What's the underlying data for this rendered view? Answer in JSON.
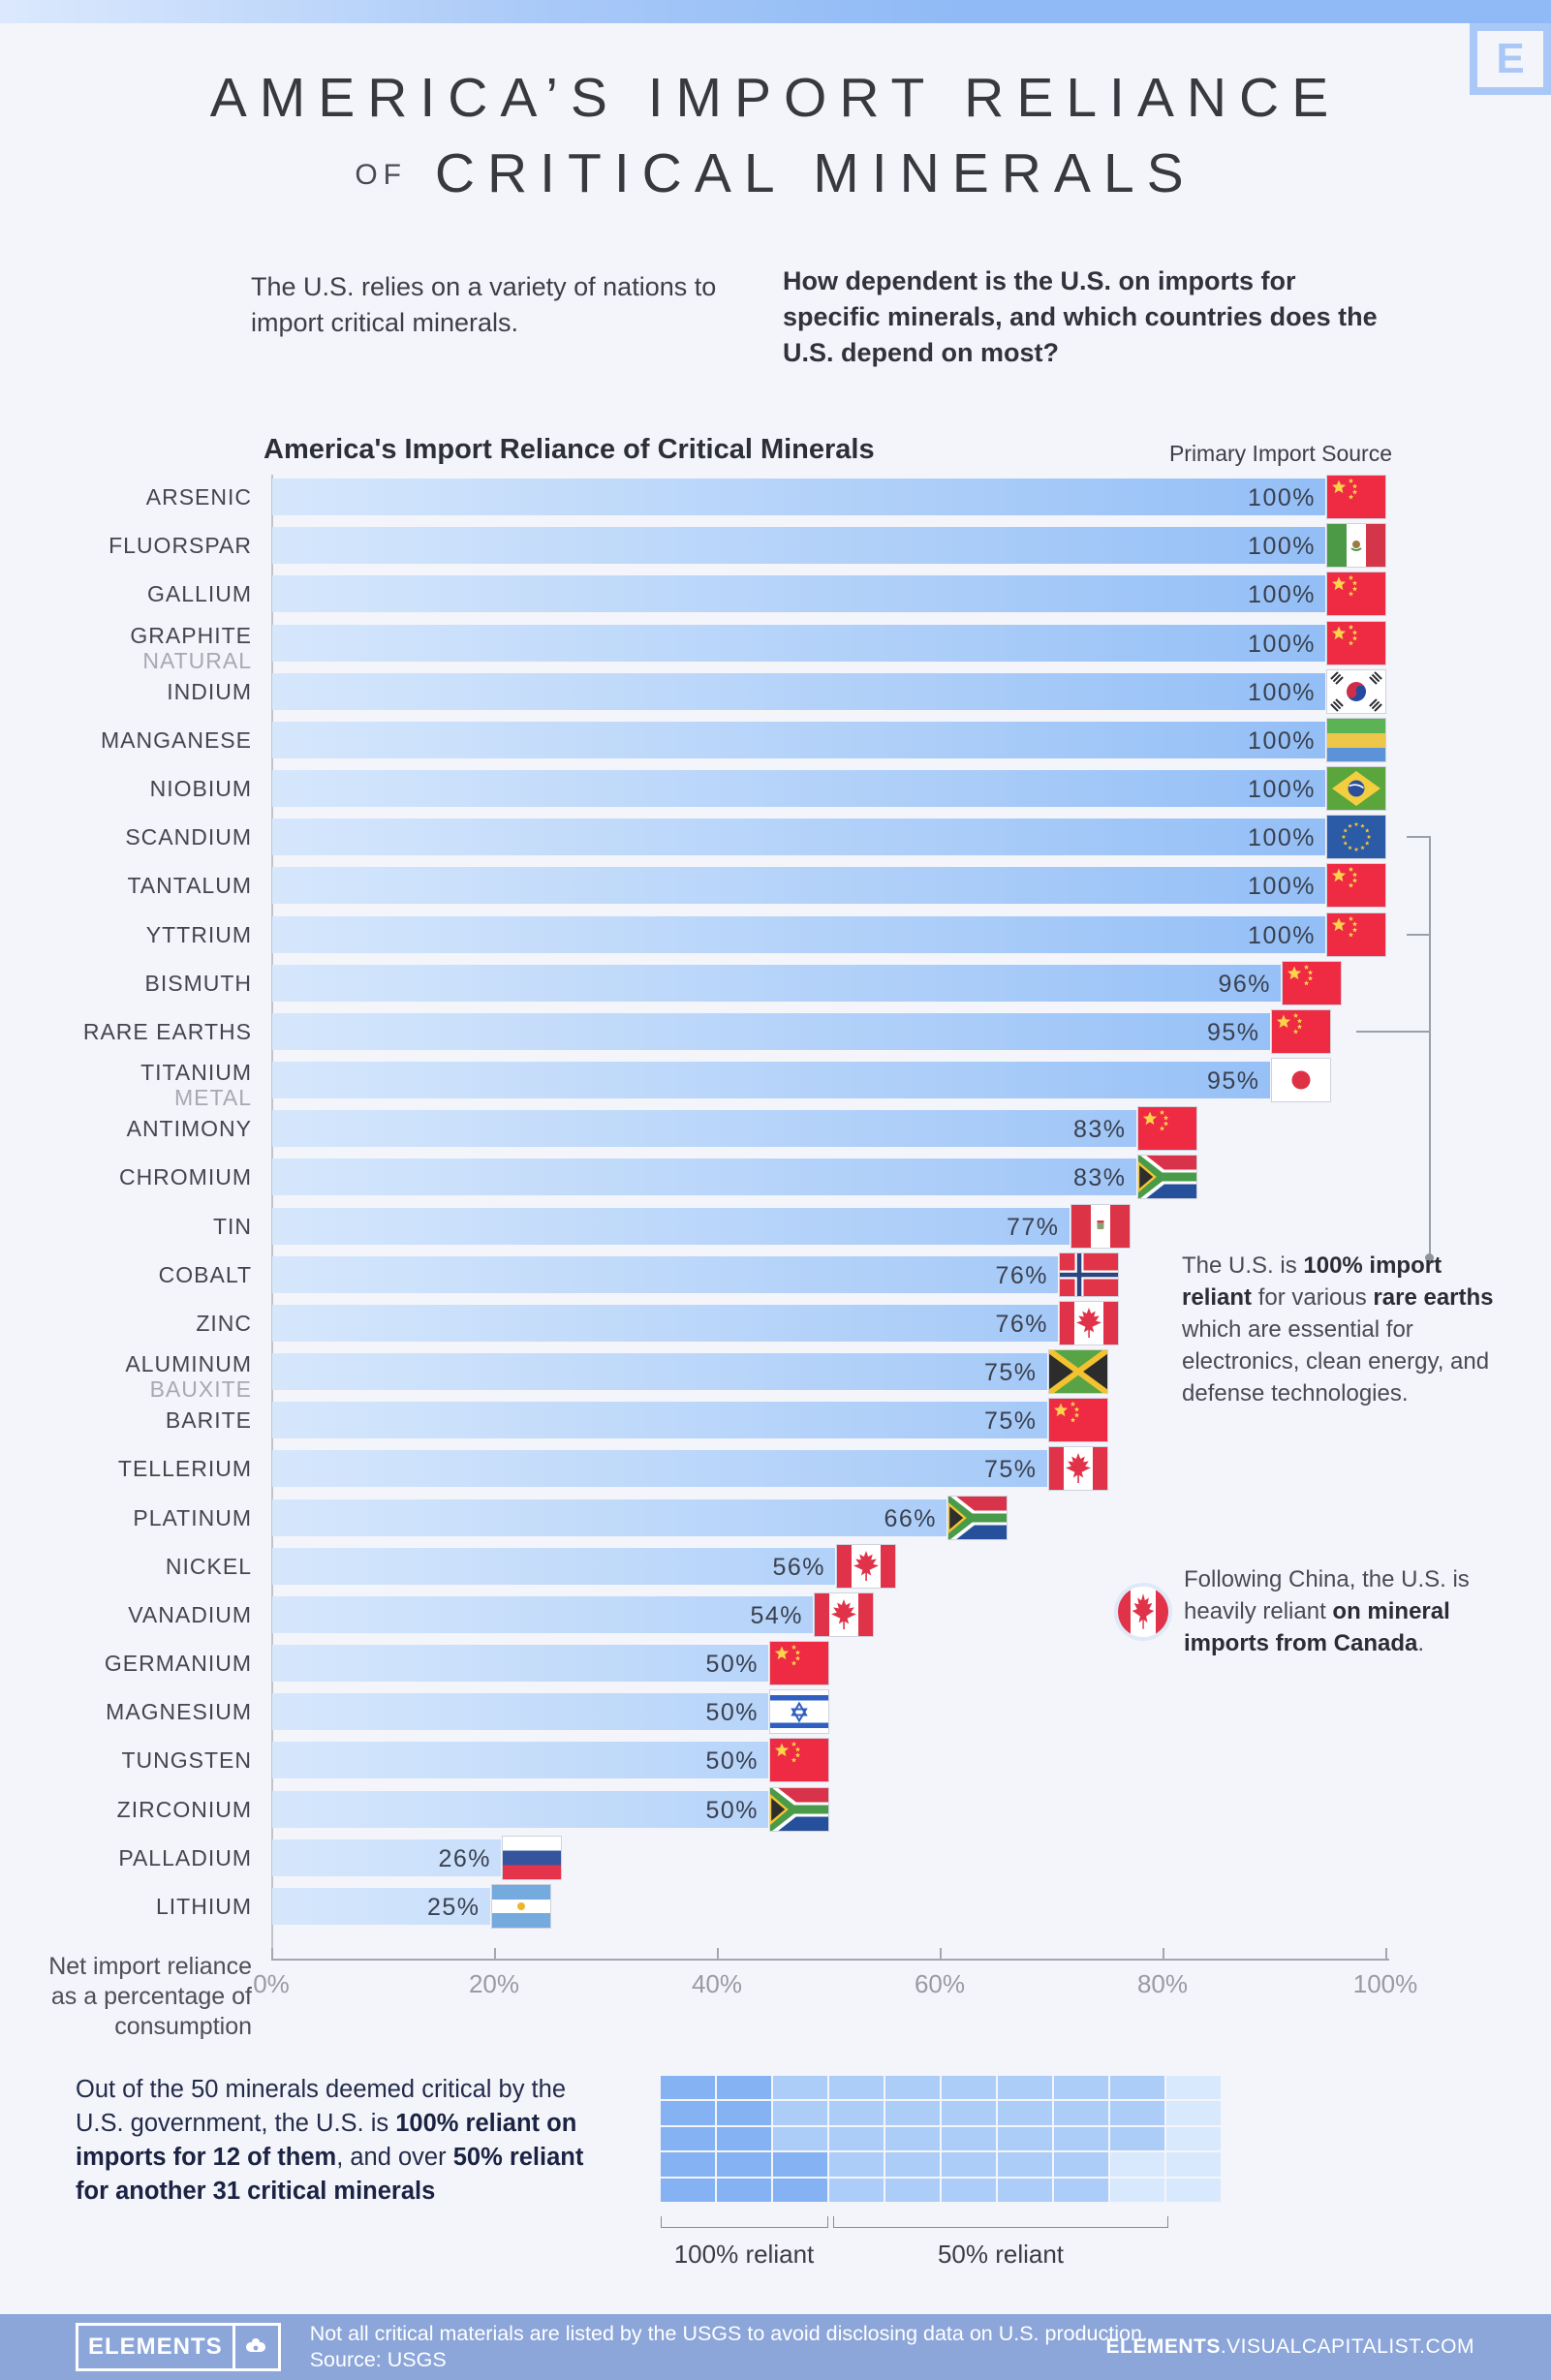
{
  "colors": {
    "banner_from": "#dce9fd",
    "banner_to": "#8fbaf5",
    "background": "#f4f5fa",
    "bar_from": "#d6e7fc",
    "bar_to": "#8fbcf6",
    "footer": "#8ca6da",
    "grid_dark": "#85b2f2",
    "grid_mid": "#abcdf7",
    "grid_light": "#d9e9fd",
    "accent_logo": "#a9c8f7"
  },
  "header": {
    "title_line1": "AMERICA’S IMPORT RELIANCE",
    "title_line2_small": "OF",
    "title_line2": "CRITICAL MINERALS",
    "logo_letter": "E",
    "intro_left": "The U.S. relies on a variety of nations to import critical minerals.",
    "intro_right": "How dependent is the U.S. on imports for specific minerals, and which countries does the U.S. depend on most?"
  },
  "chart": {
    "title": "America's Import Reliance of Critical Minerals",
    "legend_right": "Primary Import Source",
    "axis_caption": [
      "Net import reliance",
      "as a percentage of",
      "consumption"
    ],
    "ticks": [
      {
        "value": 0,
        "label": "0%"
      },
      {
        "value": 20,
        "label": "20%"
      },
      {
        "value": 40,
        "label": "40%"
      },
      {
        "value": 60,
        "label": "60%"
      },
      {
        "value": 80,
        "label": "80%"
      },
      {
        "value": 100,
        "label": "100%"
      }
    ],
    "rows": [
      {
        "mineral": "ARSENIC",
        "sub": "",
        "value": 100,
        "pct_label": "100%",
        "flag": "cn",
        "country": "China"
      },
      {
        "mineral": "FLUORSPAR",
        "sub": "",
        "value": 100,
        "pct_label": "100%",
        "flag": "mx",
        "country": "Mexico"
      },
      {
        "mineral": "GALLIUM",
        "sub": "",
        "value": 100,
        "pct_label": "100%",
        "flag": "cn",
        "country": "China"
      },
      {
        "mineral": "GRAPHITE",
        "sub": "NATURAL",
        "value": 100,
        "pct_label": "100%",
        "flag": "cn",
        "country": "China"
      },
      {
        "mineral": "INDIUM",
        "sub": "",
        "value": 100,
        "pct_label": "100%",
        "flag": "kr",
        "country": "South Korea"
      },
      {
        "mineral": "MANGANESE",
        "sub": "",
        "value": 100,
        "pct_label": "100%",
        "flag": "ga",
        "country": "Gabon"
      },
      {
        "mineral": "NIOBIUM",
        "sub": "",
        "value": 100,
        "pct_label": "100%",
        "flag": "br",
        "country": "Brazil"
      },
      {
        "mineral": "SCANDIUM",
        "sub": "",
        "value": 100,
        "pct_label": "100%",
        "flag": "eu",
        "country": "European Union"
      },
      {
        "mineral": "TANTALUM",
        "sub": "",
        "value": 100,
        "pct_label": "100%",
        "flag": "cn",
        "country": "China"
      },
      {
        "mineral": "YTTRIUM",
        "sub": "",
        "value": 100,
        "pct_label": "100%",
        "flag": "cn",
        "country": "China"
      },
      {
        "mineral": "BISMUTH",
        "sub": "",
        "value": 96,
        "pct_label": "96%",
        "flag": "cn",
        "country": "China"
      },
      {
        "mineral": "RARE EARTHS",
        "sub": "",
        "value": 95,
        "pct_label": "95%",
        "flag": "cn",
        "country": "China"
      },
      {
        "mineral": "TITANIUM",
        "sub": "METAL",
        "value": 95,
        "pct_label": "95%",
        "flag": "jp",
        "country": "Japan"
      },
      {
        "mineral": "ANTIMONY",
        "sub": "",
        "value": 83,
        "pct_label": "83%",
        "flag": "cn",
        "country": "China"
      },
      {
        "mineral": "CHROMIUM",
        "sub": "",
        "value": 83,
        "pct_label": "83%",
        "flag": "za",
        "country": "South Africa"
      },
      {
        "mineral": "TIN",
        "sub": "",
        "value": 77,
        "pct_label": "77%",
        "flag": "pe",
        "country": "Peru"
      },
      {
        "mineral": "COBALT",
        "sub": "",
        "value": 76,
        "pct_label": "76%",
        "flag": "no",
        "country": "Norway"
      },
      {
        "mineral": "ZINC",
        "sub": "",
        "value": 76,
        "pct_label": "76%",
        "flag": "ca",
        "country": "Canada"
      },
      {
        "mineral": "ALUMINUM",
        "sub": "BAUXITE",
        "value": 75,
        "pct_label": "75%",
        "flag": "jm",
        "country": "Jamaica"
      },
      {
        "mineral": "BARITE",
        "sub": "",
        "value": 75,
        "pct_label": "75%",
        "flag": "cn",
        "country": "China"
      },
      {
        "mineral": "TELLERIUM",
        "sub": "",
        "value": 75,
        "pct_label": "75%",
        "flag": "ca",
        "country": "Canada"
      },
      {
        "mineral": "PLATINUM",
        "sub": "",
        "value": 66,
        "pct_label": "66%",
        "flag": "za",
        "country": "South Africa"
      },
      {
        "mineral": "NICKEL",
        "sub": "",
        "value": 56,
        "pct_label": "56%",
        "flag": "ca",
        "country": "Canada"
      },
      {
        "mineral": "VANADIUM",
        "sub": "",
        "value": 54,
        "pct_label": "54%",
        "flag": "ca",
        "country": "Canada"
      },
      {
        "mineral": "GERMANIUM",
        "sub": "",
        "value": 50,
        "pct_label": "50%",
        "flag": "cn",
        "country": "China"
      },
      {
        "mineral": "MAGNESIUM",
        "sub": "",
        "value": 50,
        "pct_label": "50%",
        "flag": "il",
        "country": "Israel"
      },
      {
        "mineral": "TUNGSTEN",
        "sub": "",
        "value": 50,
        "pct_label": "50%",
        "flag": "cn",
        "country": "China"
      },
      {
        "mineral": "ZIRCONIUM",
        "sub": "",
        "value": 50,
        "pct_label": "50%",
        "flag": "za",
        "country": "South Africa"
      },
      {
        "mineral": "PALLADIUM",
        "sub": "",
        "value": 26,
        "pct_label": "26%",
        "flag": "ru",
        "country": "Russia"
      },
      {
        "mineral": "LITHIUM",
        "sub": "",
        "value": 25,
        "pct_label": "25%",
        "flag": "ar",
        "country": "Argentina"
      }
    ]
  },
  "annotations": {
    "rare_earths": {
      "connect_rows": [
        7,
        9,
        11
      ],
      "parts": [
        {
          "t": "The U.S. is ",
          "b": false
        },
        {
          "t": "100% import reliant",
          "b": true
        },
        {
          "t": " for various ",
          "b": false
        },
        {
          "t": "rare earths",
          "b": true
        },
        {
          "t": " which are essential for electronics, clean energy, and defense technologies.",
          "b": false
        }
      ]
    },
    "canada": {
      "flag": "ca",
      "parts": [
        {
          "t": "Following China, the U.S. is heavily reliant ",
          "b": false
        },
        {
          "t": "on mineral imports from Canada",
          "b": true
        },
        {
          "t": ".",
          "b": false
        }
      ]
    }
  },
  "summary": {
    "parts": [
      {
        "t": "Out of the 50 minerals deemed critical by the U.S. government, the U.S. is ",
        "b": false
      },
      {
        "t": "100% reliant on imports for 12 of them",
        "b": true
      },
      {
        "t": ", and over ",
        "b": false
      },
      {
        "t": "50% reliant",
        "b": true
      },
      {
        "t": " ",
        "b": false
      },
      {
        "t": "for another 31 critical minerals",
        "b": true
      }
    ],
    "grid_pattern": [
      "2211111110",
      "2211111110",
      "2211111110",
      "2221111100",
      "2221111100"
    ],
    "bracket1_label": "100% reliant",
    "bracket2_label": "50% reliant"
  },
  "footer": {
    "logo_text": "ELEMENTS",
    "note_line1": "Not all critical materials are listed by the USGS to avoid disclosing data on U.S. production.",
    "note_line2": "Source: USGS",
    "site_bold": "ELEMENTS",
    "site_rest": ".VISUALCAPITALIST.COM"
  },
  "chart_data": {
    "type": "bar",
    "orientation": "horizontal",
    "title": "America's Import Reliance of Critical Minerals",
    "categories": [
      "ARSENIC",
      "FLUORSPAR",
      "GALLIUM",
      "GRAPHITE (NATURAL)",
      "INDIUM",
      "MANGANESE",
      "NIOBIUM",
      "SCANDIUM",
      "TANTALUM",
      "YTTRIUM",
      "BISMUTH",
      "RARE EARTHS",
      "TITANIUM (METAL)",
      "ANTIMONY",
      "CHROMIUM",
      "TIN",
      "COBALT",
      "ZINC",
      "ALUMINUM (BAUXITE)",
      "BARITE",
      "TELLERIUM",
      "PLATINUM",
      "NICKEL",
      "VANADIUM",
      "GERMANIUM",
      "MAGNESIUM",
      "TUNGSTEN",
      "ZIRCONIUM",
      "PALLADIUM",
      "LITHIUM"
    ],
    "values": [
      100,
      100,
      100,
      100,
      100,
      100,
      100,
      100,
      100,
      100,
      96,
      95,
      95,
      83,
      83,
      77,
      76,
      76,
      75,
      75,
      75,
      66,
      56,
      54,
      50,
      50,
      50,
      50,
      26,
      25
    ],
    "primary_import_source": [
      "China",
      "Mexico",
      "China",
      "China",
      "South Korea",
      "Gabon",
      "Brazil",
      "European Union",
      "China",
      "China",
      "China",
      "China",
      "Japan",
      "China",
      "South Africa",
      "Peru",
      "Norway",
      "Canada",
      "Jamaica",
      "China",
      "Canada",
      "South Africa",
      "Canada",
      "Canada",
      "China",
      "Israel",
      "China",
      "South Africa",
      "Russia",
      "Argentina"
    ],
    "xlabel": "Net import reliance as a percentage of consumption",
    "xlim": [
      0,
      100
    ],
    "x_ticks": [
      0,
      20,
      40,
      60,
      80,
      100
    ],
    "grid": false,
    "legend_position": "top-right"
  }
}
